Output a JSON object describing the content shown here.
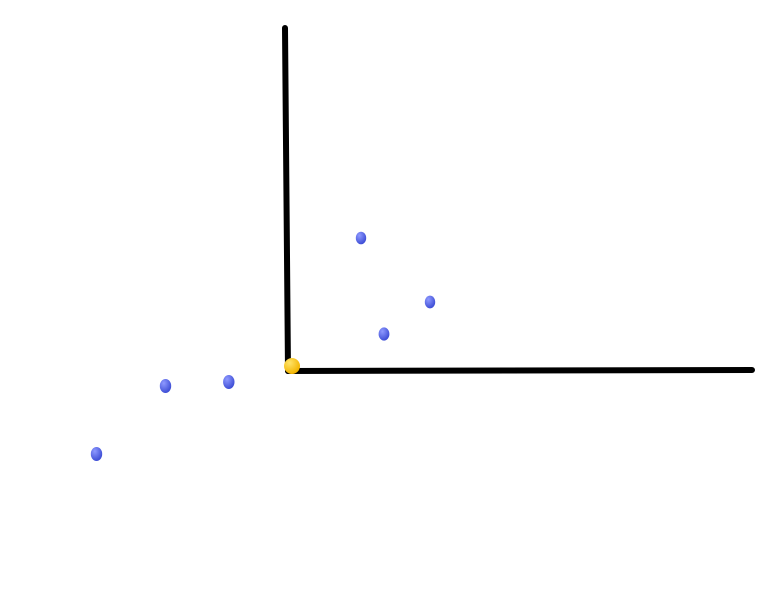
{
  "colors": {
    "background": "#ffffff",
    "axis": "#000000",
    "point": "#3f4fd6",
    "point_highlight": "#8e99ff",
    "origin": "#f2b400",
    "origin_highlight": "#ffe46a"
  },
  "chart_data": {
    "type": "scatter",
    "title": "",
    "xlabel": "",
    "ylabel": "",
    "axes": {
      "x_positive_only": true,
      "y_positive_only": true,
      "grid": false
    },
    "origin": {
      "x": 0,
      "y": 0
    },
    "points": [
      {
        "x": 0.6,
        "y": 1.6
      },
      {
        "x": 1.2,
        "y": 0.8
      },
      {
        "x": 0.8,
        "y": 0.4
      },
      {
        "x": -0.55,
        "y": -0.2
      },
      {
        "x": -1.1,
        "y": -0.25
      },
      {
        "x": -1.7,
        "y": -1.1
      }
    ]
  }
}
